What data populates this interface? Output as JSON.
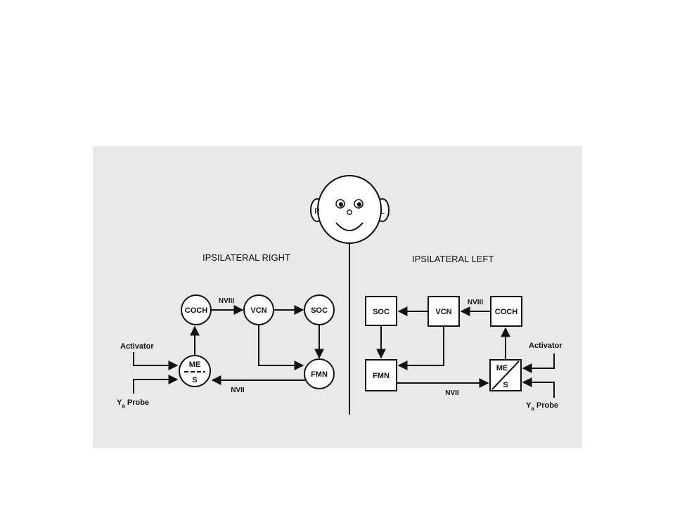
{
  "face": {
    "right_ear": "R",
    "left_ear": "L"
  },
  "right": {
    "title": "IPSILATERAL RIGHT",
    "nodes": {
      "coch": "COCH",
      "vcn": "VCN",
      "soc": "SOC",
      "fmn": "FMN",
      "me_top": "ME",
      "me_bottom": "S"
    },
    "edges": {
      "nviii": "NVIII",
      "nvii": "NVII"
    },
    "inputs": {
      "activator": "Activator",
      "probe_main": "Y",
      "probe_sub": "a",
      "probe_word": " Probe"
    }
  },
  "left": {
    "title": "IPSILATERAL LEFT",
    "nodes": {
      "coch": "COCH",
      "vcn": "VCN",
      "soc": "SOC",
      "fmn": "FMN",
      "me_top": "ME",
      "me_bottom": "S"
    },
    "edges": {
      "nviii": "NVIII",
      "nvii": "NVII"
    },
    "inputs": {
      "activator": "Activator",
      "probe_main": "Y",
      "probe_sub": "a",
      "probe_word": " Probe"
    }
  },
  "colors": {
    "ink": "#111111",
    "paper": "#e9e9e9",
    "background": "#ffffff"
  }
}
